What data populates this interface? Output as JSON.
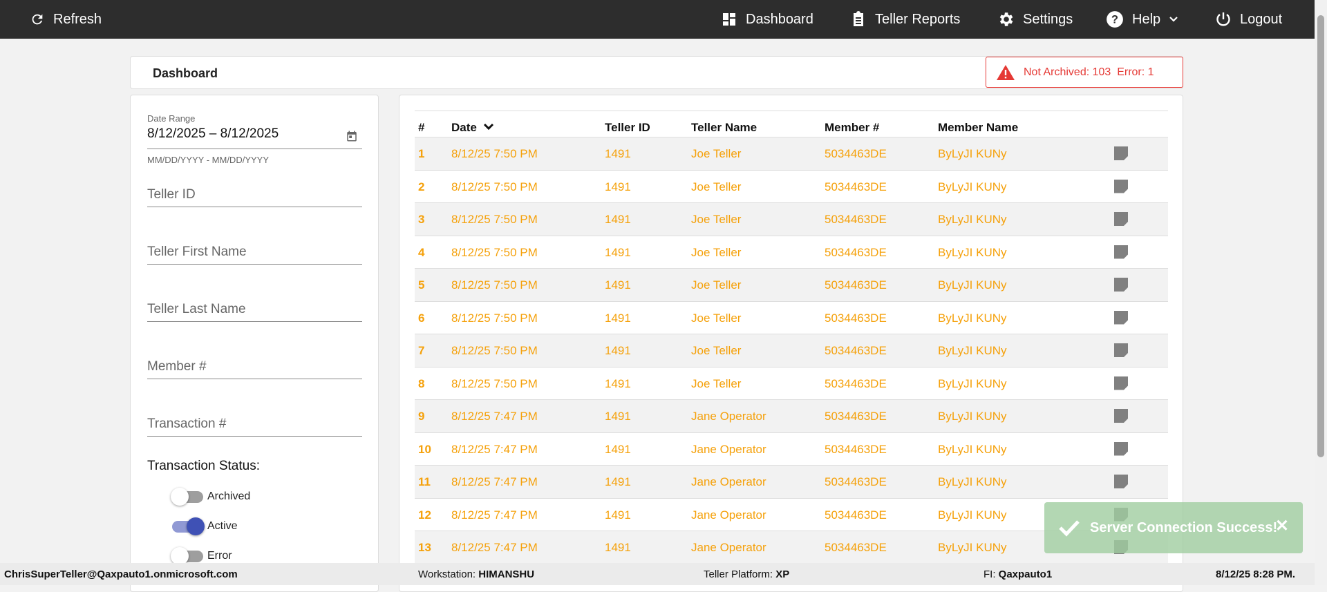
{
  "nav": {
    "refresh": "Refresh",
    "dashboard": "Dashboard",
    "teller_reports": "Teller Reports",
    "settings": "Settings",
    "help": "Help",
    "logout": "Logout"
  },
  "header": {
    "title": "Dashboard",
    "alert": "Not Archived: 103  Error: 1"
  },
  "filters": {
    "date_label": "Date Range",
    "date_value": "8/12/2025 – 8/12/2025",
    "date_hint": "MM/DD/YYYY - MM/DD/YYYY",
    "teller_id": "Teller ID",
    "first_name": "Teller First Name",
    "last_name": "Teller Last Name",
    "member": "Member #",
    "transaction": "Transaction #",
    "status_label": "Transaction Status:",
    "toggles": [
      {
        "label": "Archived",
        "on": false
      },
      {
        "label": "Active",
        "on": true
      },
      {
        "label": "Error",
        "on": false
      }
    ]
  },
  "table": {
    "columns": [
      "#",
      "Date",
      "Teller ID",
      "Teller Name",
      "Member #",
      "Member Name"
    ],
    "rows": [
      [
        "1",
        "8/12/25 7:50 PM",
        "1491",
        "Joe Teller",
        "5034463DE",
        "ByLyJI KUNy"
      ],
      [
        "2",
        "8/12/25 7:50 PM",
        "1491",
        "Joe Teller",
        "5034463DE",
        "ByLyJI KUNy"
      ],
      [
        "3",
        "8/12/25 7:50 PM",
        "1491",
        "Joe Teller",
        "5034463DE",
        "ByLyJI KUNy"
      ],
      [
        "4",
        "8/12/25 7:50 PM",
        "1491",
        "Joe Teller",
        "5034463DE",
        "ByLyJI KUNy"
      ],
      [
        "5",
        "8/12/25 7:50 PM",
        "1491",
        "Joe Teller",
        "5034463DE",
        "ByLyJI KUNy"
      ],
      [
        "6",
        "8/12/25 7:50 PM",
        "1491",
        "Joe Teller",
        "5034463DE",
        "ByLyJI KUNy"
      ],
      [
        "7",
        "8/12/25 7:50 PM",
        "1491",
        "Joe Teller",
        "5034463DE",
        "ByLyJI KUNy"
      ],
      [
        "8",
        "8/12/25 7:50 PM",
        "1491",
        "Joe Teller",
        "5034463DE",
        "ByLyJI KUNy"
      ],
      [
        "9",
        "8/12/25 7:47 PM",
        "1491",
        "Jane Operator",
        "5034463DE",
        "ByLyJI KUNy"
      ],
      [
        "10",
        "8/12/25 7:47 PM",
        "1491",
        "Jane Operator",
        "5034463DE",
        "ByLyJI KUNy"
      ],
      [
        "11",
        "8/12/25 7:47 PM",
        "1491",
        "Jane Operator",
        "5034463DE",
        "ByLyJI KUNy"
      ],
      [
        "12",
        "8/12/25 7:47 PM",
        "1491",
        "Jane Operator",
        "5034463DE",
        "ByLyJI KUNy"
      ],
      [
        "13",
        "8/12/25 7:47 PM",
        "1491",
        "Jane Operator",
        "5034463DE",
        "ByLyJI KUNy"
      ]
    ]
  },
  "toast": {
    "message": "Server Connection Success!"
  },
  "footer": {
    "user": "ChrisSuperTeller@Qaxpauto1.onmicrosoft.com",
    "workstation_label": "Workstation: ",
    "workstation": "HIMANSHU",
    "platform_label": "Teller Platform: ",
    "platform": "XP",
    "fi_label": "FI: ",
    "fi": "Qaxpauto1",
    "datetime": "8/12/25 8:28 PM."
  },
  "colors": {
    "accent": "#f5a10b",
    "error": "#e53935",
    "toggle_on": "#3f51b5",
    "navbar": "#2d2d2d"
  }
}
